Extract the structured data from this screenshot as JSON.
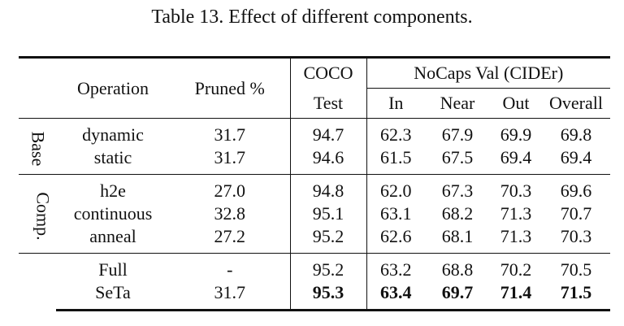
{
  "caption": "Table 13. Effect of different components.",
  "headers": {
    "operation": "Operation",
    "pruned": "Pruned %",
    "coco_line1": "COCO",
    "coco_line2": "Test",
    "nocaps": "NoCaps Val (CIDEr)",
    "in": "In",
    "near": "Near",
    "out": "Out",
    "overall": "Overall"
  },
  "groups": [
    {
      "label": "Base",
      "rows": [
        {
          "operation": "dynamic",
          "pruned": "31.7",
          "coco": "94.7",
          "in": "62.3",
          "near": "67.9",
          "out": "69.9",
          "overall": "69.8"
        },
        {
          "operation": "static",
          "pruned": "31.7",
          "coco": "94.6",
          "in": "61.5",
          "near": "67.5",
          "out": "69.4",
          "overall": "69.4"
        }
      ]
    },
    {
      "label": "Comp.",
      "rows": [
        {
          "operation": "h2e",
          "pruned": "27.0",
          "coco": "94.8",
          "in": "62.0",
          "near": "67.3",
          "out": "70.3",
          "overall": "69.6"
        },
        {
          "operation": "continuous",
          "pruned": "32.8",
          "coco": "95.1",
          "in": "63.1",
          "near": "68.2",
          "out": "71.3",
          "overall": "70.7"
        },
        {
          "operation": "anneal",
          "pruned": "27.2",
          "coco": "95.2",
          "in": "62.6",
          "near": "68.1",
          "out": "71.3",
          "overall": "70.3"
        }
      ]
    },
    {
      "label": "",
      "rows": [
        {
          "operation": "Full",
          "pruned": "-",
          "coco": "95.2",
          "in": "63.2",
          "near": "68.8",
          "out": "70.2",
          "overall": "70.5"
        },
        {
          "operation": "SeTa",
          "pruned": "31.7",
          "coco": "95.3",
          "in": "63.4",
          "near": "69.7",
          "out": "71.4",
          "overall": "71.5"
        }
      ]
    }
  ]
}
